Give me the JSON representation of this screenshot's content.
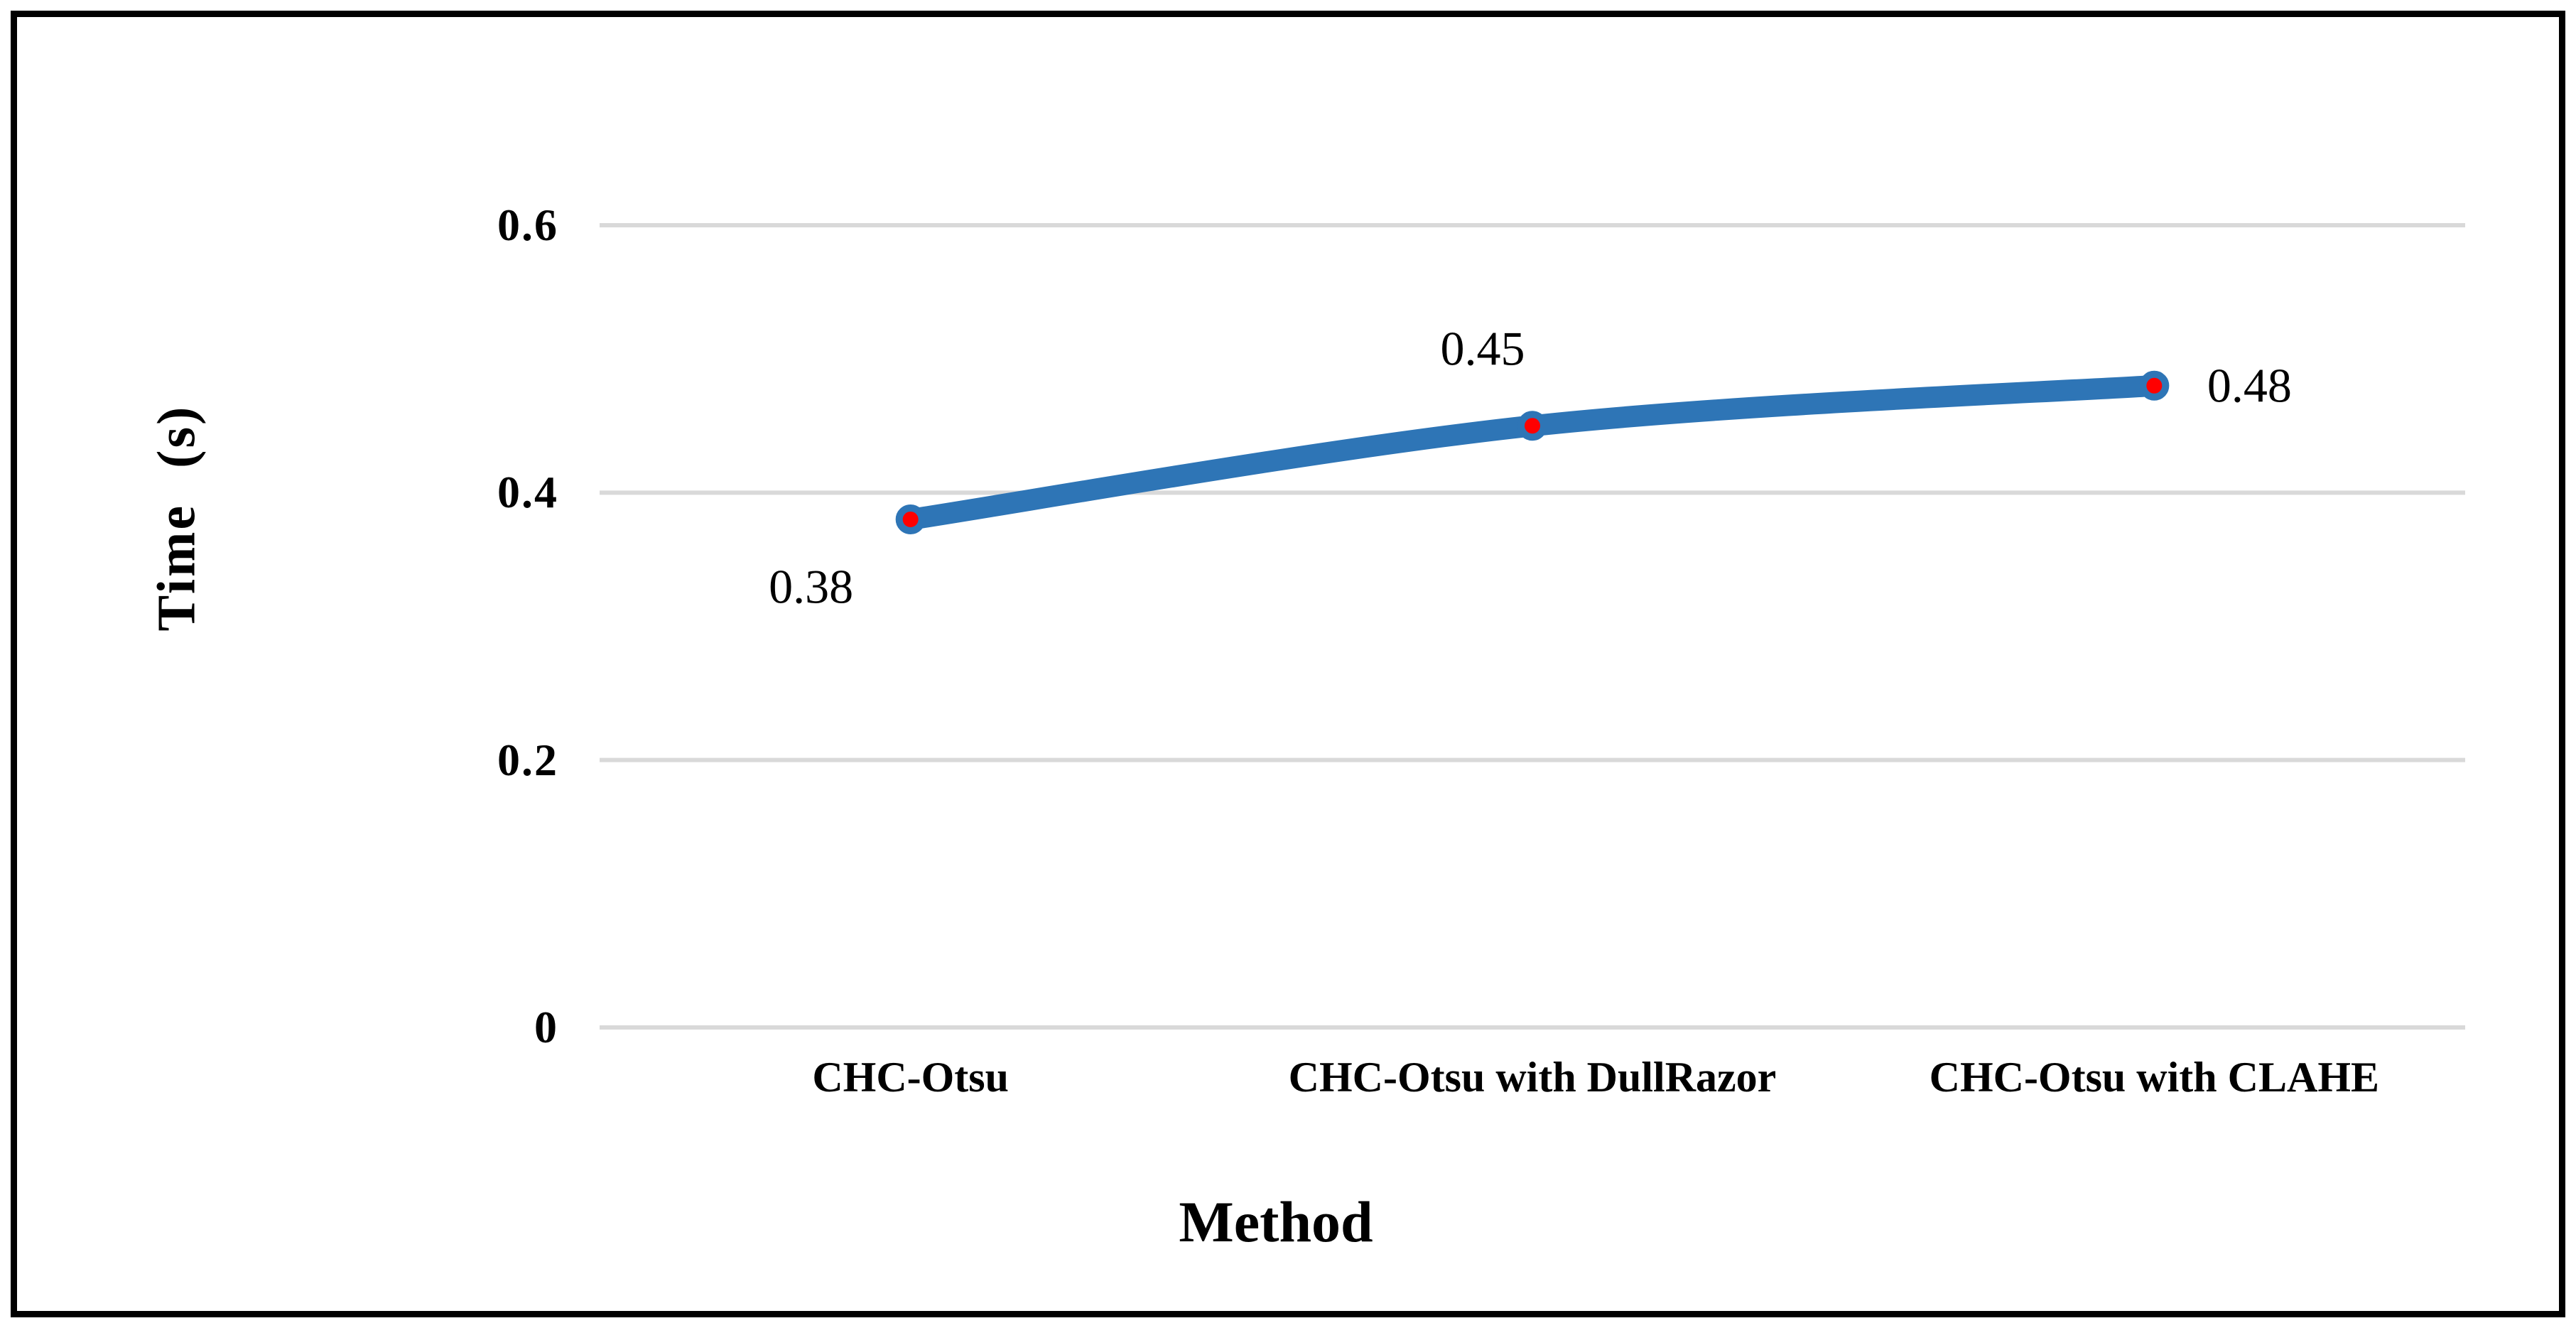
{
  "chart_data": {
    "type": "line",
    "title": "",
    "categories": [
      "CHC-Otsu",
      "CHC-Otsu with DullRazor",
      "CHC-Otsu with CLAHE"
    ],
    "series": [
      {
        "name": "Time (s)",
        "values": [
          0.38,
          0.45,
          0.48
        ]
      }
    ],
    "data_labels": [
      "0.38",
      "0.45",
      "0.48"
    ],
    "label_placements": [
      "below-left",
      "above-left",
      "right"
    ],
    "xlabel": "Method",
    "ylabel": "Time (s)",
    "ylim": [
      0,
      0.6
    ],
    "yticks": [
      0,
      0.2,
      0.4,
      0.6
    ],
    "ytick_labels": [
      "0",
      "0.2",
      "0.4",
      "0.6"
    ],
    "grid": true,
    "smooth": true,
    "legend": "none",
    "colors": {
      "line": "#2E75B6",
      "marker_fill": "#FF0000",
      "marker_stroke": "#2E75B6",
      "gridline": "#D9D9D9",
      "text": "#000000",
      "frame_border": "#000000",
      "background": "#FFFFFF"
    }
  }
}
